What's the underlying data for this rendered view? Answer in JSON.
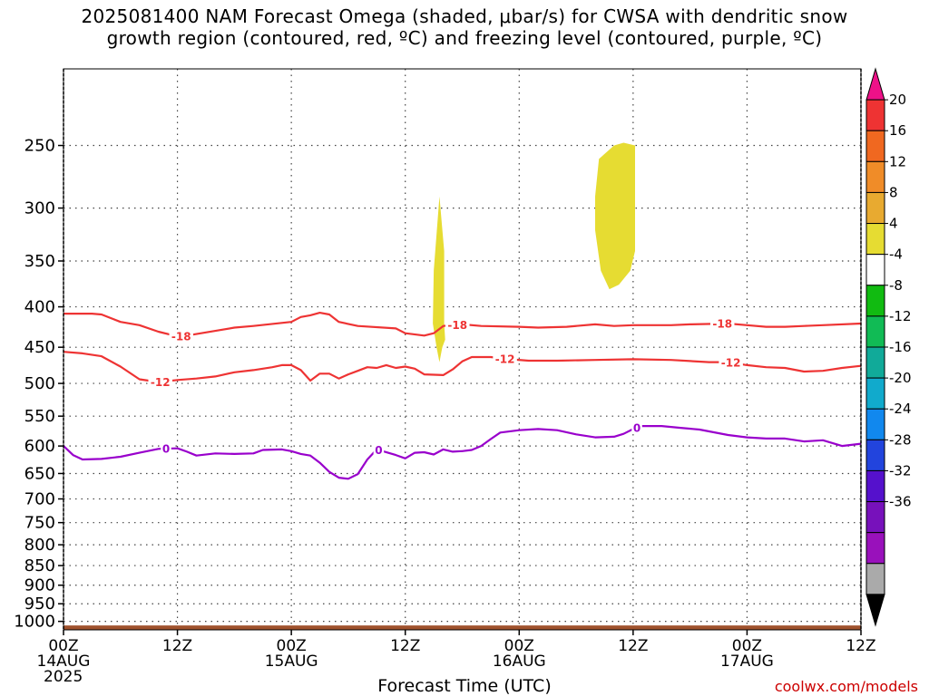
{
  "title": {
    "line1": "2025081400 NAM Forecast Omega (shaded, μbar/s) for CWSA with dendritic snow",
    "line2": "growth region (contoured, red, ºC) and freezing level (contoured, purple, ºC)"
  },
  "xlabel": "Forecast Time (UTC)",
  "credit": "coolwx.com/models",
  "chart_data": {
    "type": "time-height cross-section",
    "x_unit": "hours from 2025081400",
    "x_range": [
      0,
      84
    ],
    "x_ticks": [
      {
        "h": 0,
        "lines": [
          "00Z",
          "14AUG",
          "2025"
        ]
      },
      {
        "h": 12,
        "lines": [
          "12Z"
        ]
      },
      {
        "h": 24,
        "lines": [
          "00Z",
          "15AUG"
        ]
      },
      {
        "h": 36,
        "lines": [
          "12Z"
        ]
      },
      {
        "h": 48,
        "lines": [
          "00Z",
          "16AUG"
        ]
      },
      {
        "h": 60,
        "lines": [
          "12Z"
        ]
      },
      {
        "h": 72,
        "lines": [
          "00Z",
          "17AUG"
        ]
      },
      {
        "h": 84,
        "lines": [
          "12Z"
        ]
      }
    ],
    "y_unit": "hPa",
    "y_range": [
      1025,
      200
    ],
    "y_ticks": [
      250,
      300,
      350,
      400,
      450,
      500,
      550,
      600,
      650,
      700,
      750,
      800,
      850,
      900,
      950,
      1000
    ],
    "grid": true,
    "omega_shaded": [
      {
        "color": "#e6dc32",
        "range": [
          4,
          8
        ],
        "polygon": [
          [
            39.6,
            290
          ],
          [
            40.1,
            340
          ],
          [
            40.1,
            420
          ],
          [
            40.2,
            440
          ],
          [
            39.9,
            450
          ],
          [
            39.6,
            470
          ],
          [
            39.3,
            450
          ],
          [
            38.9,
            420
          ],
          [
            39.0,
            360
          ]
        ]
      },
      {
        "color": "#e6dc32",
        "range": [
          4,
          8
        ],
        "polygon": [
          [
            58.0,
            250
          ],
          [
            59.0,
            248
          ],
          [
            60.2,
            250
          ],
          [
            60.2,
            300
          ],
          [
            60.2,
            340
          ],
          [
            59.7,
            360
          ],
          [
            58.5,
            375
          ],
          [
            57.5,
            380
          ],
          [
            56.6,
            360
          ],
          [
            56.0,
            320
          ],
          [
            56.0,
            290
          ],
          [
            56.4,
            260
          ]
        ]
      }
    ],
    "contours": [
      {
        "level": -18,
        "color": "#ee3333",
        "labels_at": [
          12.4,
          41.5,
          69.4
        ],
        "points": [
          [
            0,
            408
          ],
          [
            3,
            408
          ],
          [
            4,
            409
          ],
          [
            6,
            418
          ],
          [
            8,
            422
          ],
          [
            10,
            430
          ],
          [
            12,
            436
          ],
          [
            13,
            435
          ],
          [
            16,
            429
          ],
          [
            18,
            425
          ],
          [
            20,
            423
          ],
          [
            24,
            418
          ],
          [
            25,
            412
          ],
          [
            26,
            410
          ],
          [
            27,
            407
          ],
          [
            28,
            409
          ],
          [
            29,
            418
          ],
          [
            31,
            423
          ],
          [
            35,
            426
          ],
          [
            36,
            432
          ],
          [
            38,
            435
          ],
          [
            39,
            432
          ],
          [
            40,
            423
          ],
          [
            42,
            421
          ],
          [
            44,
            423
          ],
          [
            48,
            424
          ],
          [
            50,
            425
          ],
          [
            53,
            424
          ],
          [
            56,
            421
          ],
          [
            58,
            423
          ],
          [
            60,
            422
          ],
          [
            64,
            422
          ],
          [
            66,
            421
          ],
          [
            70,
            420
          ],
          [
            72,
            422
          ],
          [
            74,
            424
          ],
          [
            76,
            424
          ],
          [
            78,
            423
          ],
          [
            80,
            422
          ],
          [
            84,
            420
          ]
        ]
      },
      {
        "level": -12,
        "color": "#ee3333",
        "labels_at": [
          10.2,
          46.5,
          70.3
        ],
        "points": [
          [
            0,
            456
          ],
          [
            2,
            458
          ],
          [
            4,
            462
          ],
          [
            6,
            476
          ],
          [
            8,
            494
          ],
          [
            10,
            498
          ],
          [
            12,
            495
          ],
          [
            14,
            493
          ],
          [
            16,
            490
          ],
          [
            18,
            484
          ],
          [
            20,
            481
          ],
          [
            22,
            477
          ],
          [
            23,
            474
          ],
          [
            24,
            474
          ],
          [
            25,
            481
          ],
          [
            26,
            496
          ],
          [
            27,
            486
          ],
          [
            28,
            486
          ],
          [
            29,
            493
          ],
          [
            30,
            487
          ],
          [
            31,
            482
          ],
          [
            32,
            477
          ],
          [
            33,
            478
          ],
          [
            34,
            474
          ],
          [
            35,
            478
          ],
          [
            36,
            476
          ],
          [
            37,
            479
          ],
          [
            38,
            487
          ],
          [
            40,
            488
          ],
          [
            41,
            480
          ],
          [
            42,
            469
          ],
          [
            43,
            463
          ],
          [
            45,
            463
          ],
          [
            47,
            466
          ],
          [
            49,
            468
          ],
          [
            52,
            468
          ],
          [
            56,
            467
          ],
          [
            60,
            466
          ],
          [
            64,
            467
          ],
          [
            68,
            470
          ],
          [
            70,
            470
          ],
          [
            72,
            474
          ],
          [
            74,
            477
          ],
          [
            76,
            478
          ],
          [
            78,
            483
          ],
          [
            80,
            482
          ],
          [
            82,
            478
          ],
          [
            84,
            475
          ]
        ]
      },
      {
        "level": 0,
        "color": "#9900cc",
        "labels_at": [
          10.8,
          33.2,
          60.4
        ],
        "points": [
          [
            0,
            600
          ],
          [
            1,
            616
          ],
          [
            2,
            624
          ],
          [
            4,
            623
          ],
          [
            6,
            619
          ],
          [
            8,
            612
          ],
          [
            10,
            605
          ],
          [
            12,
            604
          ],
          [
            13,
            610
          ],
          [
            14,
            617
          ],
          [
            16,
            613
          ],
          [
            18,
            614
          ],
          [
            20,
            613
          ],
          [
            21,
            607
          ],
          [
            23,
            606
          ],
          [
            24,
            609
          ],
          [
            25,
            614
          ],
          [
            26,
            617
          ],
          [
            27,
            630
          ],
          [
            28,
            647
          ],
          [
            29,
            658
          ],
          [
            30,
            660
          ],
          [
            31,
            651
          ],
          [
            32,
            624
          ],
          [
            33,
            606
          ],
          [
            35,
            616
          ],
          [
            36,
            622
          ],
          [
            37,
            612
          ],
          [
            38,
            611
          ],
          [
            39,
            615
          ],
          [
            40,
            606
          ],
          [
            41,
            610
          ],
          [
            42,
            609
          ],
          [
            43,
            607
          ],
          [
            44,
            600
          ],
          [
            45,
            588
          ],
          [
            46,
            577
          ],
          [
            48,
            573
          ],
          [
            50,
            571
          ],
          [
            52,
            573
          ],
          [
            54,
            580
          ],
          [
            56,
            585
          ],
          [
            58,
            584
          ],
          [
            59,
            579
          ],
          [
            60,
            571
          ],
          [
            61,
            566
          ],
          [
            63,
            566
          ],
          [
            65,
            569
          ],
          [
            67,
            572
          ],
          [
            70,
            581
          ],
          [
            72,
            585
          ],
          [
            74,
            587
          ],
          [
            76,
            587
          ],
          [
            78,
            592
          ],
          [
            80,
            590
          ],
          [
            82,
            600
          ],
          [
            84,
            596
          ]
        ]
      }
    ],
    "terrain": {
      "color": "#a0522d",
      "surface_hPa": 1012
    },
    "colorbar": {
      "ticks": [
        "20",
        "16",
        "12",
        "8",
        "4",
        "-4",
        "-8",
        "-12",
        "-16",
        "-20",
        "-24",
        "-28",
        "-32",
        "-36"
      ],
      "colors": [
        "#ee1188",
        "#ee3333",
        "#f06820",
        "#f08c28",
        "#e8aa30",
        "#e6dc32",
        "#ffffff",
        "#11bb11",
        "#11bb55",
        "#11aa99",
        "#11aacc",
        "#1188ee",
        "#2244dd",
        "#5511cc",
        "#7711bb",
        "#9911bb",
        "#aaaaaa",
        "#000000"
      ]
    }
  }
}
